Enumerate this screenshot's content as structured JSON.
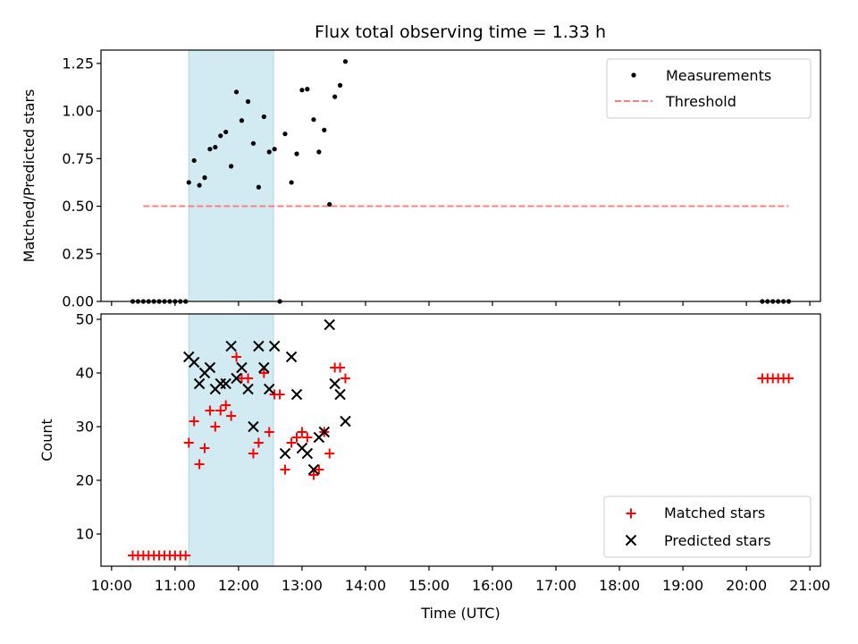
{
  "title": "Flux total observing time = 1.33 h",
  "xlabel": "Time (UTC)",
  "colors": {
    "measurements": "#000000",
    "threshold": "#ff7f7f",
    "matched": "#ff0000",
    "predicted": "#000000",
    "span": "#add8e6"
  },
  "chart_data": [
    {
      "type": "scatter",
      "ylabel": "Matched/Predicted stars",
      "ylim": [
        0,
        1.32
      ],
      "yticks": [
        "0.00",
        "0.25",
        "0.50",
        "0.75",
        "1.00",
        "1.25"
      ],
      "ytick_values": [
        0,
        0.25,
        0.5,
        0.75,
        1.0,
        1.25
      ],
      "legend": {
        "placement": "top-right",
        "entries": [
          "Measurements",
          "Threshold"
        ]
      },
      "highlight_span": {
        "x": [
          "11:13",
          "12:33"
        ]
      },
      "threshold": {
        "name": "Threshold",
        "y": 0.5,
        "x": [
          "10:30",
          "20:40"
        ]
      },
      "series": [
        {
          "name": "Measurements",
          "x": [
            "10:20",
            "10:25",
            "10:30",
            "10:35",
            "10:40",
            "10:45",
            "10:50",
            "10:55",
            "11:00",
            "11:05",
            "11:10",
            "11:13",
            "11:18",
            "11:23",
            "11:28",
            "11:33",
            "11:38",
            "11:43",
            "11:48",
            "11:53",
            "11:58",
            "12:03",
            "12:09",
            "12:14",
            "12:19",
            "12:24",
            "12:29",
            "12:34",
            "12:39",
            "12:44",
            "12:50",
            "12:55",
            "13:00",
            "13:05",
            "13:11",
            "13:16",
            "13:21",
            "13:26",
            "13:31",
            "13:36",
            "13:41",
            "20:15",
            "20:20",
            "20:25",
            "20:30",
            "20:35",
            "20:40"
          ],
          "y": [
            0,
            0,
            0,
            0,
            0,
            0,
            0,
            0,
            0,
            0,
            0,
            0.625,
            0.74,
            0.61,
            0.65,
            0.8,
            0.81,
            0.87,
            0.89,
            0.71,
            1.1,
            0.95,
            1.05,
            0.83,
            0.6,
            0.97,
            0.785,
            0.8,
            0,
            0.88,
            0.625,
            0.775,
            1.11,
            1.115,
            0.955,
            0.785,
            0.9,
            0.51,
            1.075,
            1.135,
            1.26,
            0,
            0,
            0,
            0,
            0,
            0
          ]
        }
      ]
    },
    {
      "type": "scatter",
      "ylabel": "Count",
      "ylim": [
        4,
        51
      ],
      "yticks": [
        "10",
        "20",
        "30",
        "40",
        "50"
      ],
      "ytick_values": [
        10,
        20,
        30,
        40,
        50
      ],
      "xlim": [
        "09:50",
        "21:10"
      ],
      "xticks": [
        "10:00",
        "11:00",
        "12:00",
        "13:00",
        "14:00",
        "15:00",
        "16:00",
        "17:00",
        "18:00",
        "19:00",
        "20:00",
        "21:00"
      ],
      "legend": {
        "placement": "lower-right",
        "entries": [
          "Matched stars",
          "Predicted stars"
        ]
      },
      "highlight_span": {
        "x": [
          "11:13",
          "12:33"
        ]
      },
      "series": [
        {
          "name": "Matched stars",
          "marker": "+",
          "x": [
            "10:20",
            "10:25",
            "10:30",
            "10:35",
            "10:40",
            "10:45",
            "10:50",
            "10:55",
            "11:00",
            "11:05",
            "11:10",
            "11:13",
            "11:18",
            "11:23",
            "11:28",
            "11:33",
            "11:38",
            "11:43",
            "11:48",
            "11:53",
            "11:58",
            "12:03",
            "12:09",
            "12:14",
            "12:19",
            "12:24",
            "12:29",
            "12:34",
            "12:39",
            "12:44",
            "12:50",
            "12:55",
            "13:00",
            "13:05",
            "13:11",
            "13:16",
            "13:21",
            "13:26",
            "13:31",
            "13:36",
            "13:41",
            "20:15",
            "20:20",
            "20:25",
            "20:30",
            "20:35",
            "20:40"
          ],
          "y": [
            6,
            6,
            6,
            6,
            6,
            6,
            6,
            6,
            6,
            6,
            6,
            27,
            31,
            23,
            26,
            33,
            30,
            33,
            34,
            32,
            43,
            39,
            39,
            25,
            27,
            40,
            29,
            36,
            36,
            22,
            27,
            28,
            29,
            28,
            21,
            22,
            29,
            25,
            41,
            41,
            39,
            39,
            39,
            39,
            39,
            39,
            39
          ]
        },
        {
          "name": "Predicted stars",
          "marker": "x",
          "x": [
            "11:13",
            "11:18",
            "11:23",
            "11:28",
            "11:33",
            "11:38",
            "11:43",
            "11:48",
            "11:53",
            "11:58",
            "12:03",
            "12:09",
            "12:14",
            "12:19",
            "12:24",
            "12:29",
            "12:34",
            "12:44",
            "12:50",
            "12:55",
            "13:00",
            "13:05",
            "13:11",
            "13:16",
            "13:21",
            "13:26",
            "13:31",
            "13:36",
            "13:41"
          ],
          "y": [
            43,
            42,
            38,
            40,
            41,
            37,
            38,
            38,
            45,
            39,
            41,
            37,
            30,
            45,
            41,
            37,
            45,
            25,
            43,
            36,
            26,
            25,
            22,
            28,
            29,
            49,
            38,
            36,
            31
          ]
        }
      ]
    }
  ]
}
